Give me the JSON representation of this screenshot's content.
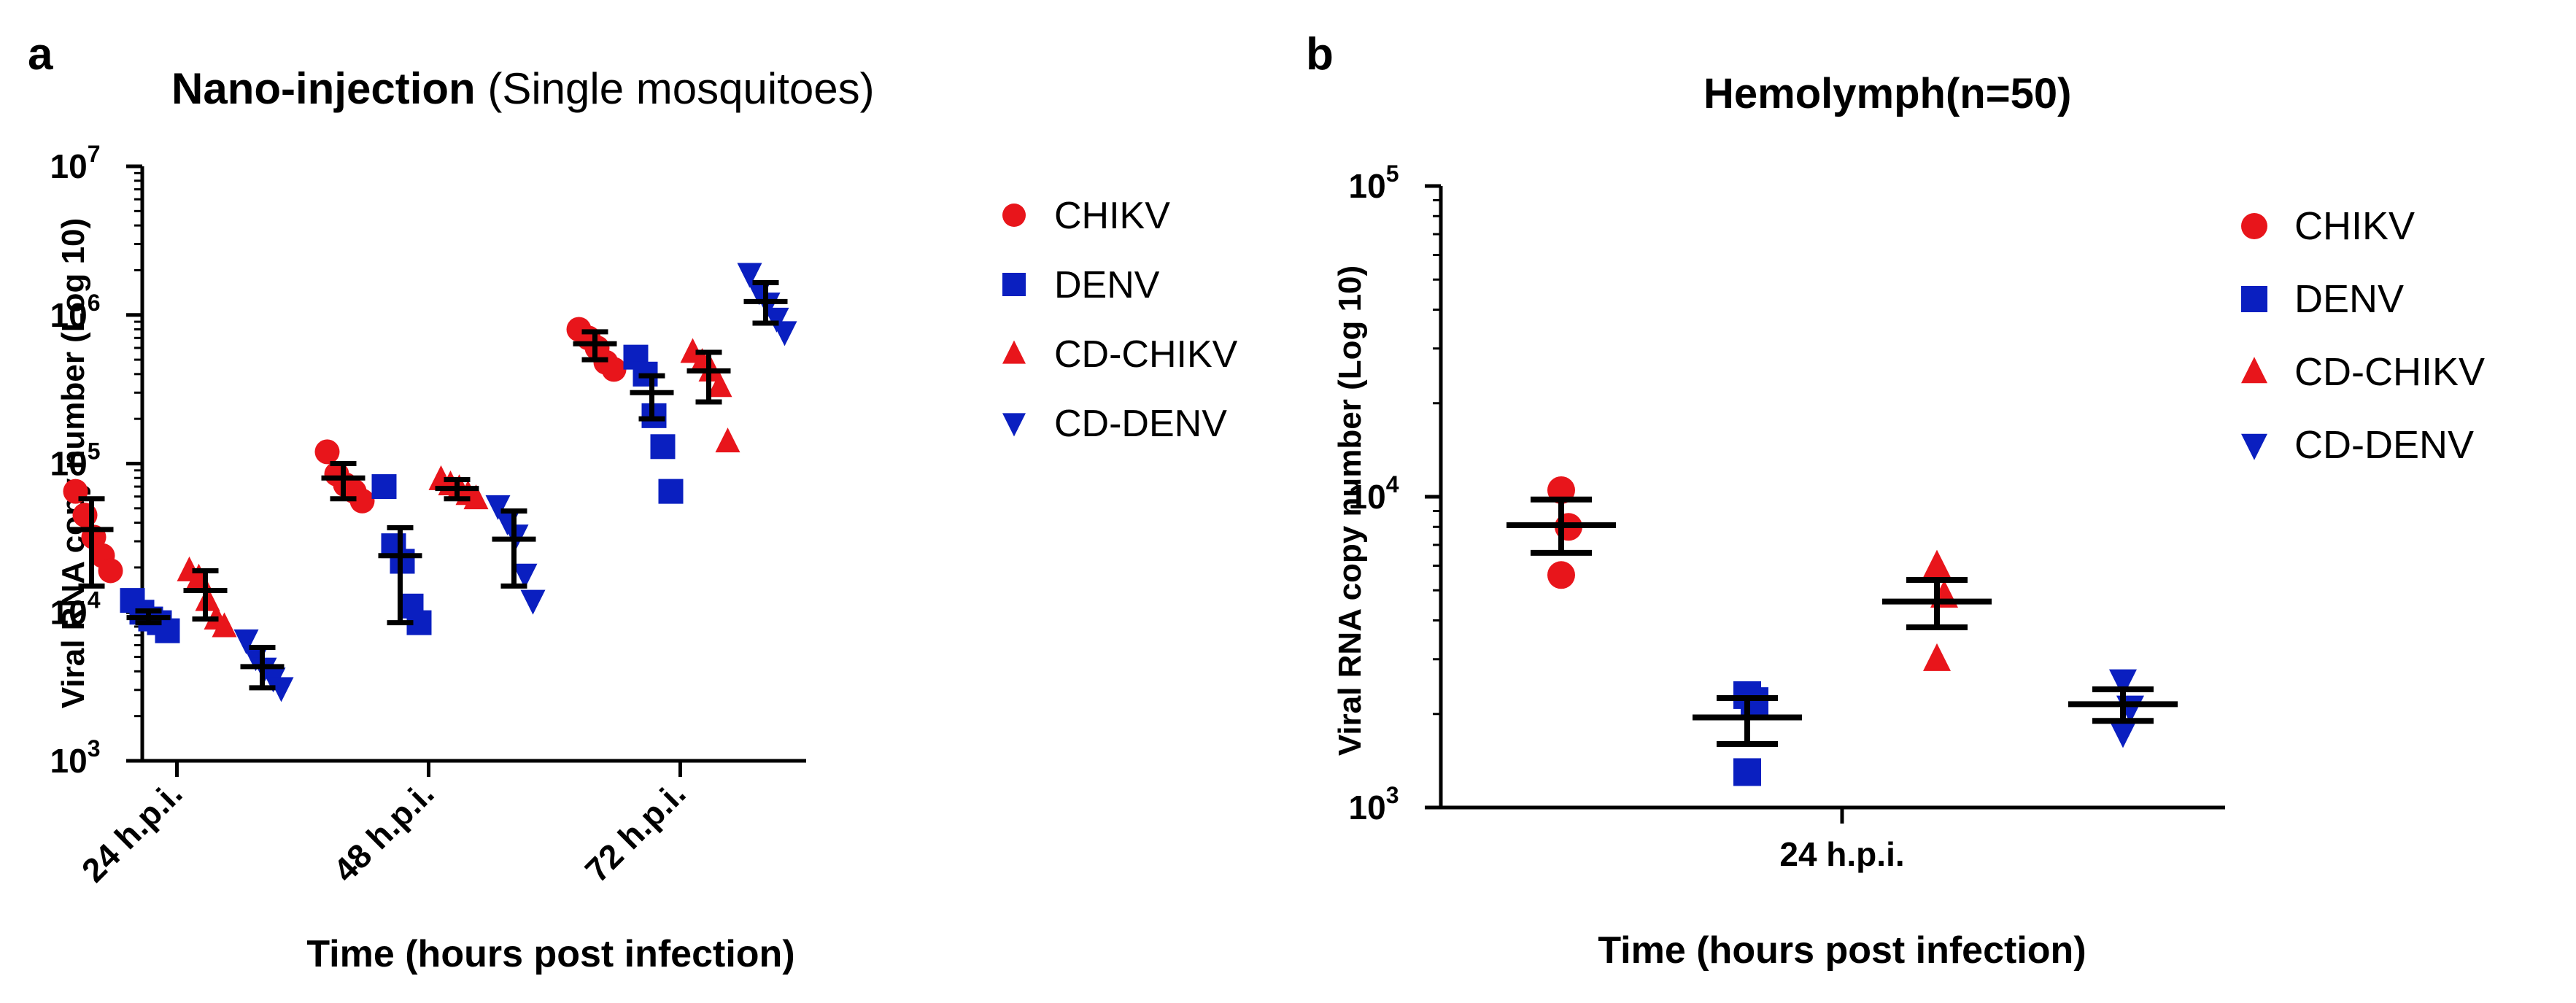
{
  "colors": {
    "axis": "#000000",
    "summary": "#000000",
    "series": {
      "CHIKV": "#e8151b",
      "DENV": "#0a1fc0",
      "CD-CHIKV": "#e8151b",
      "CD-DENV": "#0a1fc0"
    }
  },
  "chart_data": [
    {
      "panel_label": "a",
      "type": "scatter",
      "title_bold": "Nano-injection ",
      "title_normal": "(Single mosquitoes)",
      "xlabel": "Time (hours post infection)",
      "ylabel": "Viral RNA copy number (Log 10)",
      "yscale": "log",
      "ylim": [
        1000,
        10000000
      ],
      "yticks": [
        {
          "base": "10",
          "exp": "3",
          "value": 1000
        },
        {
          "base": "10",
          "exp": "4",
          "value": 10000
        },
        {
          "base": "10",
          "exp": "5",
          "value": 100000
        },
        {
          "base": "10",
          "exp": "6",
          "value": 1000000
        },
        {
          "base": "10",
          "exp": "7",
          "value": 10000000
        }
      ],
      "categories": [
        "24 h.p.i.",
        "48 h.p.i.",
        "72 h.p.i."
      ],
      "legend": [
        "CHIKV",
        "DENV",
        "CD-CHIKV",
        "CD-DENV"
      ],
      "series": [
        {
          "name": "CHIKV",
          "marker": "circle",
          "points": [
            [
              65000,
              45000,
              32000,
              24000,
              19000
            ],
            [
              120000,
              85000,
              72000,
              65000,
              56000
            ],
            [
              800000,
              700000,
              600000,
              480000,
              430000
            ]
          ],
          "mean": [
            36000,
            80000,
            640000
          ],
          "err_low": [
            15000,
            58000,
            500000
          ],
          "err_high": [
            58000,
            100000,
            770000
          ]
        },
        {
          "name": "DENV",
          "marker": "square",
          "points": [
            [
              12000,
              10000,
              9000,
              8500,
              7500
            ],
            [
              70000,
              28000,
              22000,
              11000,
              8500
            ],
            [
              520000,
              400000,
              210000,
              130000,
              65000
            ]
          ],
          "mean": [
            9200,
            24000,
            300000
          ],
          "err_low": [
            8500,
            8500,
            200000
          ],
          "err_high": [
            10200,
            37000,
            390000
          ]
        },
        {
          "name": "CD-CHIKV",
          "marker": "triangle-up",
          "points": [
            [
              19000,
              17000,
              12000,
              9000,
              8000
            ],
            [
              78000,
              72000,
              68000,
              62000,
              58000
            ],
            [
              560000,
              480000,
              420000,
              330000,
              140000
            ]
          ],
          "mean": [
            14000,
            68000,
            420000
          ],
          "err_low": [
            9000,
            58000,
            260000
          ],
          "err_high": [
            19000,
            78000,
            560000
          ]
        },
        {
          "name": "CD-DENV",
          "marker": "triangle-down",
          "points": [
            [
              6500,
              5000,
              4200,
              3600,
              3100
            ],
            [
              52000,
              41000,
              33000,
              18000,
              12000
            ],
            [
              1900000,
              1450000,
              1200000,
              950000,
              770000
            ]
          ],
          "mean": [
            4300,
            31000,
            1230000
          ],
          "err_low": [
            3100,
            15000,
            880000
          ],
          "err_high": [
            5800,
            48000,
            1650000
          ]
        }
      ]
    },
    {
      "panel_label": "b",
      "type": "scatter",
      "title_bold": "Hemolymph",
      "title_normal": "(n=50)",
      "xlabel": "Time (hours post infection)",
      "ylabel": "Viral RNA copy number (Log 10)",
      "yscale": "log",
      "ylim": [
        1000,
        100000
      ],
      "yticks": [
        {
          "base": "10",
          "exp": "3",
          "value": 1000
        },
        {
          "base": "10",
          "exp": "4",
          "value": 10000
        },
        {
          "base": "10",
          "exp": "5",
          "value": 100000
        }
      ],
      "categories": [
        "24 h.p.i."
      ],
      "legend": [
        "CHIKV",
        "DENV",
        "CD-CHIKV",
        "CD-DENV"
      ],
      "series": [
        {
          "name": "CHIKV",
          "marker": "circle",
          "points": [
            [
              10500,
              8000,
              5600
            ]
          ],
          "mean": [
            8100
          ],
          "err_low": [
            6600
          ],
          "err_high": [
            9800
          ]
        },
        {
          "name": "DENV",
          "marker": "square",
          "points": [
            [
              2300,
              2200,
              1300
            ]
          ],
          "mean": [
            1950
          ],
          "err_low": [
            1600
          ],
          "err_high": [
            2250
          ]
        },
        {
          "name": "CD-CHIKV",
          "marker": "triangle-up",
          "points": [
            [
              6000,
              4800,
              3000
            ]
          ],
          "mean": [
            4600
          ],
          "err_low": [
            3800
          ],
          "err_high": [
            5400
          ]
        },
        {
          "name": "CD-DENV",
          "marker": "triangle-down",
          "points": [
            [
              2550,
              2100,
              1750
            ]
          ],
          "mean": [
            2150
          ],
          "err_low": [
            1900
          ],
          "err_high": [
            2400
          ]
        }
      ]
    }
  ]
}
